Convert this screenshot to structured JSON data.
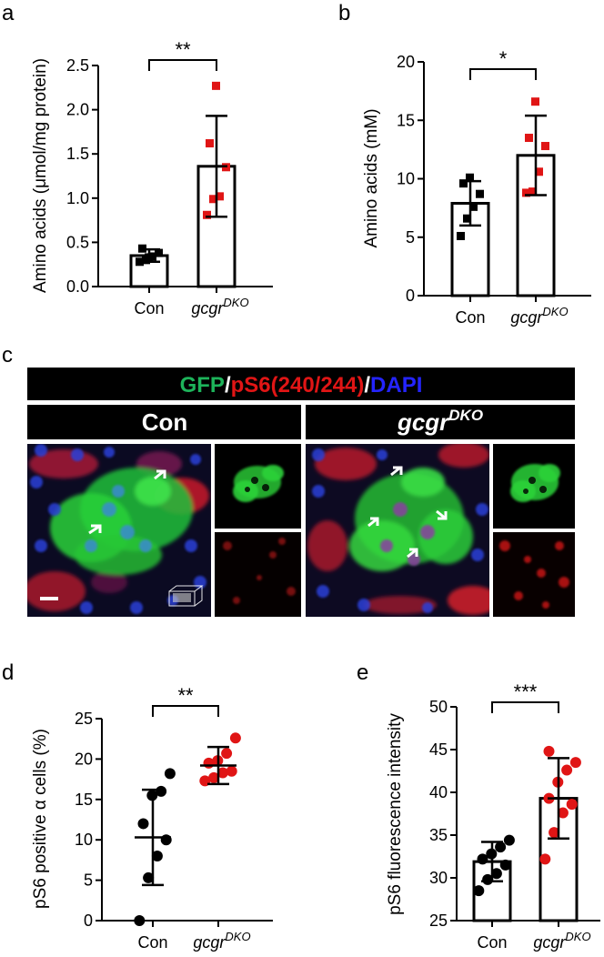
{
  "panel_labels": {
    "a": "a",
    "b": "b",
    "c": "c",
    "d": "d",
    "e": "e"
  },
  "panel_c": {
    "title_parts": [
      {
        "text": "GFP",
        "color": "#1db35a"
      },
      {
        "text": "/",
        "color": "#ffffff"
      },
      {
        "text": "pS6(240/244)",
        "color": "#e01515"
      },
      {
        "text": "/",
        "color": "#ffffff"
      },
      {
        "text": "DAPI",
        "color": "#2424ff"
      }
    ],
    "group_con": "Con",
    "group_ko_base": "gcgr",
    "group_ko_sup": "DKO"
  },
  "chart_data": [
    {
      "id": "a",
      "type": "bar",
      "ylabel": "Amino acids (μmol/mg protein)",
      "categories": [
        {
          "base": "Con",
          "sup": ""
        },
        {
          "base": "gcgr",
          "sup": "DKO"
        }
      ],
      "ylim": [
        0,
        2.5
      ],
      "yticks": [
        0,
        0.5,
        1.0,
        1.5,
        2.0,
        2.5
      ],
      "ytick_labels": [
        "0.0",
        "0.5",
        "1.0",
        "1.5",
        "2.0",
        "2.5"
      ],
      "means": [
        0.35,
        1.36
      ],
      "sd": [
        0.07,
        0.57
      ],
      "points": [
        [
          0.28,
          0.3,
          0.34,
          0.38,
          0.43,
          0.33
        ],
        [
          0.81,
          0.99,
          1.02,
          1.35,
          1.62,
          2.27
        ]
      ],
      "marker": "square",
      "colors": [
        "#000000",
        "#e01515"
      ],
      "significance": "**"
    },
    {
      "id": "b",
      "type": "bar",
      "ylabel": "Amino acids (mM)",
      "categories": [
        {
          "base": "Con",
          "sup": ""
        },
        {
          "base": "gcgr",
          "sup": "DKO"
        }
      ],
      "ylim": [
        0,
        20
      ],
      "yticks": [
        0,
        5,
        10,
        15,
        20
      ],
      "ytick_labels": [
        "0",
        "5",
        "10",
        "15",
        "20"
      ],
      "means": [
        7.9,
        12.0
      ],
      "sd": [
        1.9,
        3.4
      ],
      "points": [
        [
          5.1,
          6.6,
          7.6,
          8.7,
          9.6,
          10.1
        ],
        [
          8.8,
          8.9,
          10.6,
          12.8,
          13.5,
          16.6
        ]
      ],
      "marker": "square",
      "colors": [
        "#000000",
        "#e01515"
      ],
      "significance": "*"
    },
    {
      "id": "d",
      "type": "scatter",
      "ylabel": "pS6 positive α cells (%)",
      "categories": [
        {
          "base": "Con",
          "sup": ""
        },
        {
          "base": "gcgr",
          "sup": "DKO"
        }
      ],
      "ylim": [
        0,
        25
      ],
      "yticks": [
        0,
        5,
        10,
        15,
        20,
        25
      ],
      "ytick_labels": [
        "0",
        "5",
        "10",
        "15",
        "20",
        "25"
      ],
      "means": [
        10.3,
        19.2
      ],
      "sd": [
        5.9,
        2.3
      ],
      "points": [
        [
          0,
          5.3,
          8,
          10,
          12,
          15.5,
          16,
          18.2
        ],
        [
          17.3,
          17.7,
          18.3,
          18.5,
          19.5,
          19.8,
          20.7,
          22.6
        ]
      ],
      "marker": "circle",
      "colors": [
        "#000000",
        "#e01515"
      ],
      "significance": "**"
    },
    {
      "id": "e",
      "type": "bar",
      "ylabel": "pS6 fluorescence intensity",
      "categories": [
        {
          "base": "Con",
          "sup": ""
        },
        {
          "base": "gcgr",
          "sup": "DKO"
        }
      ],
      "ylim": [
        25,
        50
      ],
      "yticks": [
        25,
        30,
        35,
        40,
        45,
        50
      ],
      "ytick_labels": [
        "25",
        "30",
        "35",
        "40",
        "45",
        "50"
      ],
      "means": [
        31.9,
        39.3
      ],
      "sd": [
        2.3,
        4.7
      ],
      "points": [
        [
          28.5,
          29.8,
          30.5,
          31.5,
          32.2,
          32.8,
          33.6,
          34.4
        ],
        [
          32.2,
          35.3,
          37.6,
          38.6,
          39.3,
          41.2,
          42.6,
          43.5,
          44.8
        ]
      ],
      "marker": "circle",
      "colors": [
        "#000000",
        "#e01515"
      ],
      "significance": "***"
    }
  ]
}
